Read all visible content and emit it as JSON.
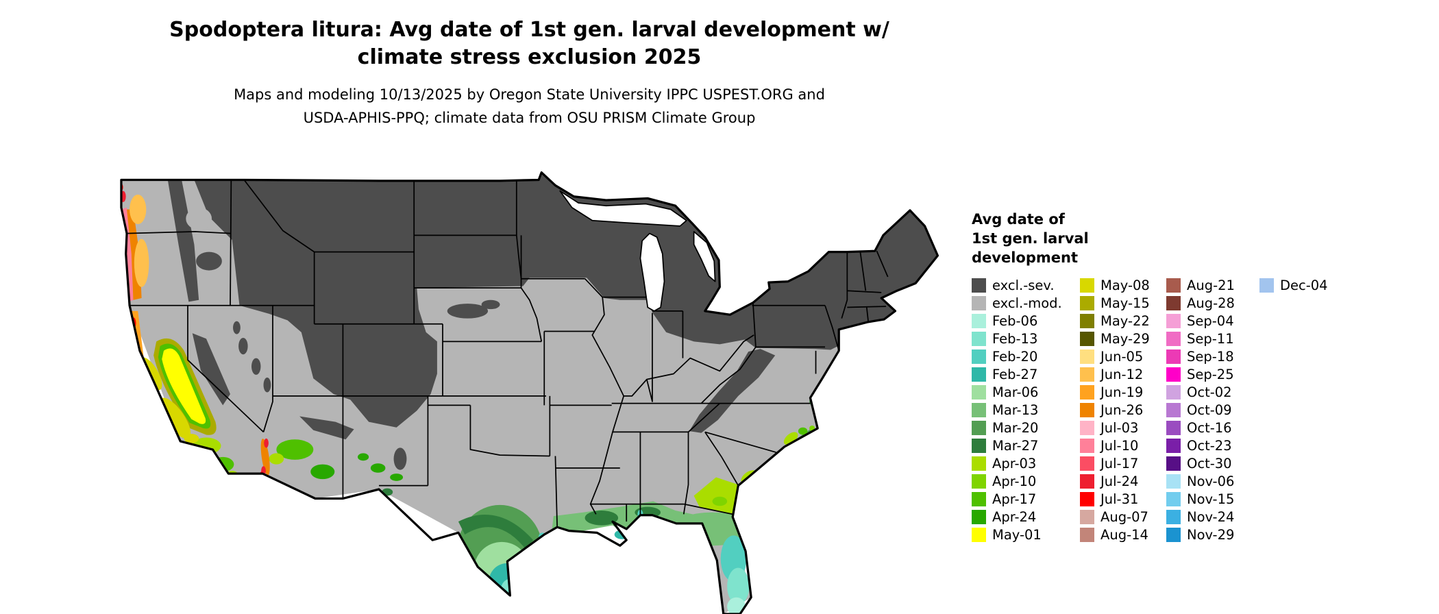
{
  "title": {
    "line1": "Spodoptera litura: Avg date of 1st gen. larval development w/",
    "line2": "climate stress exclusion 2025"
  },
  "subtitle": {
    "line1": "Maps and modeling 10/13/2025 by Oregon State University IPPC USPEST.ORG and",
    "line2": "USDA-APHIS-PPQ; climate data from OSU PRISM Climate Group"
  },
  "map": {
    "label": "Continental US map of avg date of 1st generation larval development with climate stress exclusion"
  },
  "legend": {
    "title_lines": [
      "Avg date of",
      "1st gen. larval",
      "development"
    ],
    "columns": [
      [
        {
          "key": "excl-sev",
          "label": "excl.-sev.",
          "color": "#4d4d4d"
        },
        {
          "key": "excl-mod",
          "label": "excl.-mod.",
          "color": "#b5b5b5"
        },
        {
          "key": "feb06",
          "label": "Feb-06",
          "color": "#aaf0dc"
        },
        {
          "key": "feb13",
          "label": "Feb-13",
          "color": "#7fe3cd"
        },
        {
          "key": "feb20",
          "label": "Feb-20",
          "color": "#52cfc0"
        },
        {
          "key": "feb27",
          "label": "Feb-27",
          "color": "#2fb8a8"
        },
        {
          "key": "mar06",
          "label": "Mar-06",
          "color": "#9fdf9f"
        },
        {
          "key": "mar13",
          "label": "Mar-13",
          "color": "#77c077"
        },
        {
          "key": "mar20",
          "label": "Mar-20",
          "color": "#539e53"
        },
        {
          "key": "mar27",
          "label": "Mar-27",
          "color": "#2e7d3c"
        },
        {
          "key": "apr03",
          "label": "Apr-03",
          "color": "#aadd00"
        },
        {
          "key": "apr10",
          "label": "Apr-10",
          "color": "#7fd400"
        },
        {
          "key": "apr17",
          "label": "Apr-17",
          "color": "#4fc000"
        },
        {
          "key": "apr24",
          "label": "Apr-24",
          "color": "#28a800"
        },
        {
          "key": "may01",
          "label": "May-01",
          "color": "#ffff00"
        }
      ],
      [
        {
          "key": "may08",
          "label": "May-08",
          "color": "#d8d800"
        },
        {
          "key": "may15",
          "label": "May-15",
          "color": "#abab00"
        },
        {
          "key": "may22",
          "label": "May-22",
          "color": "#7f7f00"
        },
        {
          "key": "may29",
          "label": "May-29",
          "color": "#565600"
        },
        {
          "key": "jun05",
          "label": "Jun-05",
          "color": "#ffdf80"
        },
        {
          "key": "jun12",
          "label": "Jun-12",
          "color": "#ffc04d"
        },
        {
          "key": "jun19",
          "label": "Jun-19",
          "color": "#ffa21f"
        },
        {
          "key": "jun26",
          "label": "Jun-26",
          "color": "#ef8300"
        },
        {
          "key": "jul03",
          "label": "Jul-03",
          "color": "#ffb3c6"
        },
        {
          "key": "jul10",
          "label": "Jul-10",
          "color": "#ff8099"
        },
        {
          "key": "jul17",
          "label": "Jul-17",
          "color": "#fb4d63"
        },
        {
          "key": "jul24",
          "label": "Jul-24",
          "color": "#ee1f30"
        },
        {
          "key": "jul31",
          "label": "Jul-31",
          "color": "#ff0000"
        },
        {
          "key": "aug07",
          "label": "Aug-07",
          "color": "#d6a8a0"
        },
        {
          "key": "aug14",
          "label": "Aug-14",
          "color": "#c28579"
        }
      ],
      [
        {
          "key": "aug21",
          "label": "Aug-21",
          "color": "#a85b4d"
        },
        {
          "key": "aug28",
          "label": "Aug-28",
          "color": "#7e3a30"
        },
        {
          "key": "sep04",
          "label": "Sep-04",
          "color": "#f59fd6"
        },
        {
          "key": "sep11",
          "label": "Sep-11",
          "color": "#f06cc4"
        },
        {
          "key": "sep18",
          "label": "Sep-18",
          "color": "#ec3ab5"
        },
        {
          "key": "sep25",
          "label": "Sep-25",
          "color": "#ff00c8"
        },
        {
          "key": "oct02",
          "label": "Oct-02",
          "color": "#d0a3e0"
        },
        {
          "key": "oct09",
          "label": "Oct-09",
          "color": "#b878d2"
        },
        {
          "key": "oct16",
          "label": "Oct-16",
          "color": "#9a4cc0"
        },
        {
          "key": "oct23",
          "label": "Oct-23",
          "color": "#7a1fa8"
        },
        {
          "key": "oct30",
          "label": "Oct-30",
          "color": "#570f86"
        },
        {
          "key": "nov06",
          "label": "Nov-06",
          "color": "#a8e2f5"
        },
        {
          "key": "nov15",
          "label": "Nov-15",
          "color": "#72cdee"
        },
        {
          "key": "nov24",
          "label": "Nov-24",
          "color": "#3bb0e2"
        },
        {
          "key": "nov29",
          "label": "Nov-29",
          "color": "#1b93d0"
        }
      ],
      [
        {
          "key": "dec04",
          "label": "Dec-04",
          "color": "#a2c4ee"
        }
      ]
    ]
  }
}
